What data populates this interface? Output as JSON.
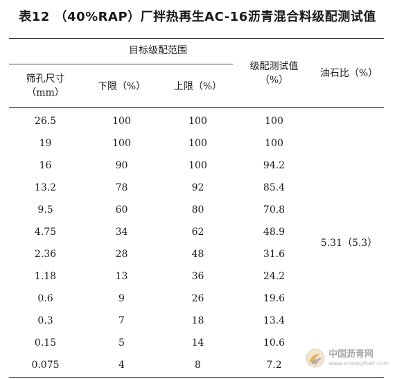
{
  "title": "表12 （40%RAP）厂拌热再生AC-16沥青混合料级配测试值",
  "header": {
    "group": "目标级配范围",
    "sieve_line1": "筛孔尺寸",
    "sieve_line2": "（mm）",
    "lower": "下限（%）",
    "upper": "上限（%）",
    "measured_line1": "级配测试值",
    "measured_line2": "（%）",
    "oil_ratio": "油石比（%）"
  },
  "rows": [
    {
      "sieve": "26.5",
      "lower": "100",
      "upper": "100",
      "measured": "100"
    },
    {
      "sieve": "19",
      "lower": "100",
      "upper": "100",
      "measured": "100"
    },
    {
      "sieve": "16",
      "lower": "90",
      "upper": "100",
      "measured": "94.2"
    },
    {
      "sieve": "13.2",
      "lower": "78",
      "upper": "92",
      "measured": "85.4"
    },
    {
      "sieve": "9.5",
      "lower": "60",
      "upper": "80",
      "measured": "70.8"
    },
    {
      "sieve": "4.75",
      "lower": "34",
      "upper": "62",
      "measured": "48.9"
    },
    {
      "sieve": "2.36",
      "lower": "28",
      "upper": "48",
      "measured": "31.6"
    },
    {
      "sieve": "1.18",
      "lower": "13",
      "upper": "36",
      "measured": "24.2"
    },
    {
      "sieve": "0.6",
      "lower": "9",
      "upper": "26",
      "measured": "19.6"
    },
    {
      "sieve": "0.3",
      "lower": "7",
      "upper": "18",
      "measured": "13.4"
    },
    {
      "sieve": "0.15",
      "lower": "5",
      "upper": "14",
      "measured": "10.6"
    },
    {
      "sieve": "0.075",
      "lower": "4",
      "upper": "8",
      "measured": "7.2"
    }
  ],
  "oil_value": "5.31（5.3）",
  "watermark": {
    "name": "中国沥青网",
    "url": "www.sinoasphalt.com",
    "icon": "sinoasphalt-logo-icon"
  }
}
